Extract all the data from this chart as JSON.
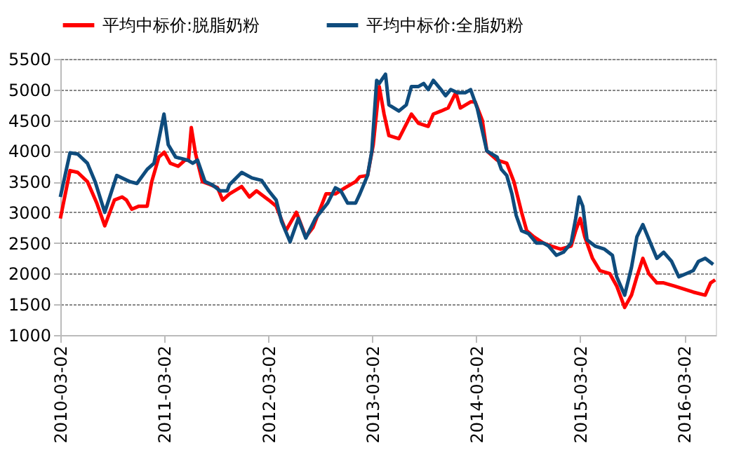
{
  "chart_data": {
    "type": "line",
    "xlim": [
      "2010-03-02",
      "2016-06-20"
    ],
    "xticks": [
      "2010-03-02",
      "2011-03-02",
      "2012-03-02",
      "2013-03-02",
      "2014-03-02",
      "2015-03-02",
      "2016-03-02"
    ],
    "ylim": [
      1000,
      5500
    ],
    "yticks": [
      1000,
      1500,
      2000,
      2500,
      3000,
      3500,
      4000,
      4500,
      5000,
      5500
    ],
    "grid": "y",
    "legend": "top",
    "marker": "none",
    "line_style": "solid",
    "series": [
      {
        "name": "平均中标价:脱脂奶粉",
        "color": "#ff0000",
        "x": [
          "2010-03-02",
          "2010-04-05",
          "2010-05-02",
          "2010-06-05",
          "2010-07-08",
          "2010-08-05",
          "2010-09-08",
          "2010-10-05",
          "2010-10-20",
          "2010-11-08",
          "2010-12-03",
          "2011-01-01",
          "2011-01-17",
          "2011-02-11",
          "2011-03-02",
          "2011-03-23",
          "2011-04-20",
          "2011-05-14",
          "2011-05-26",
          "2011-06-05",
          "2011-06-20",
          "2011-07-14",
          "2011-08-11",
          "2011-09-05",
          "2011-09-23",
          "2011-10-17",
          "2011-11-29",
          "2011-12-26",
          "2012-01-20",
          "2012-03-03",
          "2012-03-29",
          "2012-05-02",
          "2012-06-08",
          "2012-07-11",
          "2012-08-05",
          "2012-09-20",
          "2012-10-23",
          "2012-11-26",
          "2013-01-02",
          "2013-01-17",
          "2013-02-13",
          "2013-03-05",
          "2013-03-26",
          "2013-04-12",
          "2013-04-29",
          "2013-06-03",
          "2013-07-17",
          "2013-08-11",
          "2013-09-14",
          "2013-10-02",
          "2013-10-29",
          "2013-11-23",
          "2013-12-20",
          "2014-01-05",
          "2014-02-10",
          "2014-02-26",
          "2014-03-23",
          "2014-04-08",
          "2014-05-14",
          "2014-06-17",
          "2014-07-12",
          "2014-08-08",
          "2014-08-26",
          "2014-09-20",
          "2014-10-23",
          "2014-11-20",
          "2014-12-23",
          "2015-01-29",
          "2015-02-14",
          "2015-03-02",
          "2015-03-18",
          "2015-04-14",
          "2015-05-10",
          "2015-06-14",
          "2015-07-08",
          "2015-08-05",
          "2015-08-29",
          "2015-09-17",
          "2015-10-08",
          "2015-10-29",
          "2015-11-26",
          "2015-12-20",
          "2016-01-25",
          "2016-02-29",
          "2016-04-02",
          "2016-05-14",
          "2016-06-02",
          "2016-06-18"
        ],
        "values": [
          2900,
          3680,
          3650,
          3500,
          3150,
          2780,
          3200,
          3250,
          3200,
          3050,
          3100,
          3100,
          3500,
          3900,
          3980,
          3800,
          3750,
          3850,
          3850,
          4380,
          3950,
          3500,
          3450,
          3400,
          3200,
          3300,
          3420,
          3250,
          3350,
          3200,
          3100,
          2700,
          3000,
          2600,
          2750,
          3300,
          3300,
          3400,
          3500,
          3580,
          3600,
          4100,
          5050,
          4600,
          4250,
          4200,
          4600,
          4450,
          4400,
          4600,
          4650,
          4700,
          4950,
          4700,
          4800,
          4800,
          4500,
          4000,
          3850,
          3800,
          3500,
          3000,
          2700,
          2600,
          2500,
          2450,
          2400,
          2450,
          2700,
          2900,
          2600,
          2250,
          2050,
          2000,
          1800,
          1450,
          1650,
          1950,
          2250,
          2000,
          1850,
          1850,
          1800,
          1750,
          1700,
          1650,
          1850,
          1900
        ]
      },
      {
        "name": "平均中标价:全脂奶粉",
        "color": "#0f4c7d",
        "x": [
          "2010-03-02",
          "2010-04-05",
          "2010-05-02",
          "2010-06-05",
          "2010-07-02",
          "2010-08-05",
          "2010-09-16",
          "2010-11-01",
          "2010-11-26",
          "2011-01-01",
          "2011-01-25",
          "2011-03-01",
          "2011-03-16",
          "2011-04-11",
          "2011-05-23",
          "2011-06-10",
          "2011-06-27",
          "2011-07-23",
          "2011-08-17",
          "2011-09-14",
          "2011-10-09",
          "2011-10-17",
          "2011-11-29",
          "2012-01-04",
          "2012-02-07",
          "2012-03-03",
          "2012-03-29",
          "2012-04-17",
          "2012-05-17",
          "2012-06-15",
          "2012-07-11",
          "2012-08-14",
          "2012-09-26",
          "2012-10-23",
          "2012-11-11",
          "2012-12-05",
          "2013-01-02",
          "2013-01-17",
          "2013-02-13",
          "2013-02-28",
          "2013-03-17",
          "2013-03-26",
          "2013-04-17",
          "2013-04-29",
          "2013-06-03",
          "2013-06-29",
          "2013-07-17",
          "2013-08-11",
          "2013-08-29",
          "2013-09-14",
          "2013-10-02",
          "2013-10-29",
          "2013-11-14",
          "2013-12-02",
          "2013-12-26",
          "2014-01-23",
          "2014-02-10",
          "2014-03-05",
          "2014-04-08",
          "2014-05-14",
          "2014-05-29",
          "2014-06-17",
          "2014-07-05",
          "2014-07-20",
          "2014-08-08",
          "2014-09-02",
          "2014-09-29",
          "2014-10-23",
          "2014-11-11",
          "2014-12-08",
          "2015-01-02",
          "2015-01-29",
          "2015-02-14",
          "2015-02-26",
          "2015-03-11",
          "2015-03-26",
          "2015-04-23",
          "2015-05-26",
          "2015-06-23",
          "2015-07-08",
          "2015-08-05",
          "2015-08-29",
          "2015-09-17",
          "2015-10-08",
          "2015-11-08",
          "2015-11-26",
          "2015-12-20",
          "2016-01-17",
          "2016-02-11",
          "2016-03-08",
          "2016-04-02",
          "2016-04-20",
          "2016-05-14",
          "2016-06-11"
        ],
        "values": [
          3250,
          3970,
          3950,
          3800,
          3500,
          3000,
          3600,
          3500,
          3470,
          3700,
          3800,
          4600,
          4100,
          3900,
          3850,
          3800,
          3850,
          3500,
          3450,
          3350,
          3350,
          3450,
          3650,
          3560,
          3520,
          3350,
          3200,
          2850,
          2520,
          2900,
          2580,
          2900,
          3150,
          3400,
          3350,
          3150,
          3150,
          3300,
          3600,
          4000,
          5150,
          5100,
          5250,
          4750,
          4650,
          4750,
          5050,
          5050,
          5100,
          5000,
          5150,
          5000,
          4900,
          5000,
          4950,
          4950,
          5000,
          4700,
          4000,
          3900,
          3700,
          3600,
          3300,
          2950,
          2700,
          2650,
          2500,
          2500,
          2450,
          2300,
          2350,
          2500,
          2900,
          3250,
          3100,
          2550,
          2450,
          2400,
          2300,
          1950,
          1650,
          2100,
          2600,
          2800,
          2450,
          2250,
          2350,
          2200,
          1950,
          2000,
          2050,
          2200,
          2250,
          2150
        ]
      }
    ]
  }
}
